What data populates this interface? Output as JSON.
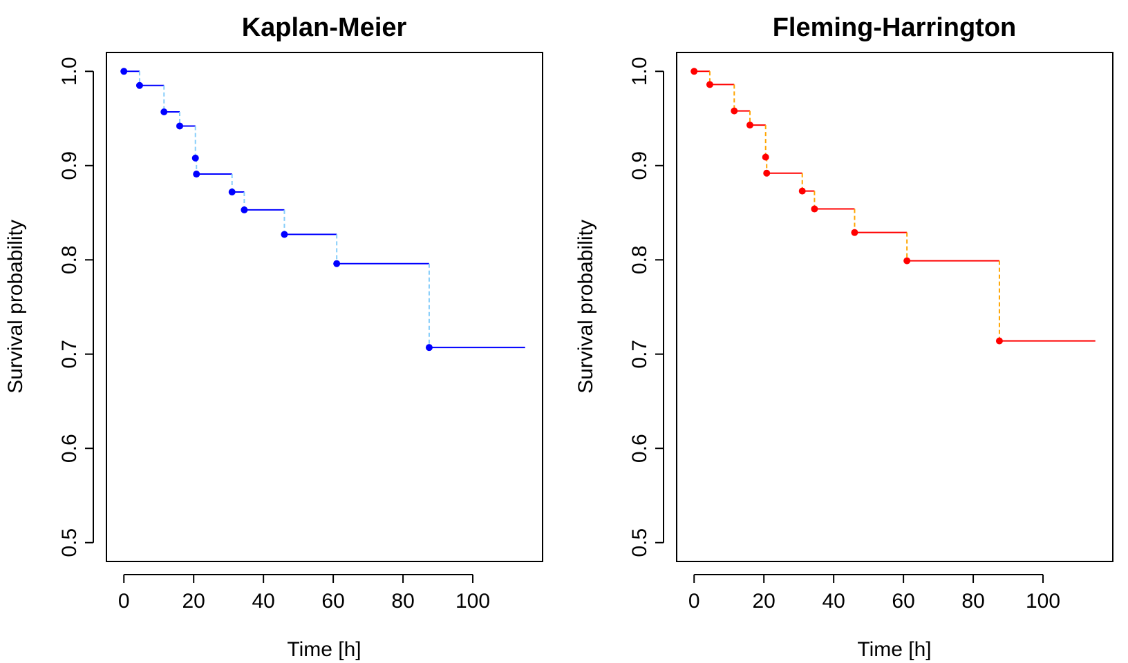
{
  "chart_data": [
    {
      "type": "line",
      "style": "step",
      "title": "Kaplan-Meier",
      "xlabel": "Time [h]",
      "ylabel": "Survival probability",
      "xlim": [
        -5,
        120
      ],
      "ylim": [
        0.48,
        1.02
      ],
      "xticks": [
        0,
        20,
        40,
        60,
        80,
        100
      ],
      "xtick_labels": [
        "0",
        "20",
        "40",
        "60",
        "80",
        "100"
      ],
      "yticks": [
        0.5,
        0.6,
        0.7,
        0.8,
        0.9,
        1.0
      ],
      "ytick_labels": [
        "0.5",
        "0.6",
        "0.7",
        "0.8",
        "0.9",
        "1.0"
      ],
      "grid": false,
      "colors": {
        "step": "#0000ff",
        "drop": "#87cefa",
        "point": "#0000ff"
      },
      "times": [
        0,
        4.5,
        11.5,
        16,
        20.5,
        20.8,
        31,
        34.5,
        46,
        61,
        87.5
      ],
      "survival": [
        1.0,
        0.985,
        0.957,
        0.942,
        0.908,
        0.891,
        0.872,
        0.853,
        0.827,
        0.796,
        0.707
      ],
      "x_end": 115
    },
    {
      "type": "line",
      "style": "step",
      "title": "Fleming-Harrington",
      "xlabel": "Time [h]",
      "ylabel": "Survival probability",
      "xlim": [
        -5,
        120
      ],
      "ylim": [
        0.48,
        1.02
      ],
      "xticks": [
        0,
        20,
        40,
        60,
        80,
        100
      ],
      "xtick_labels": [
        "0",
        "20",
        "40",
        "60",
        "80",
        "100"
      ],
      "yticks": [
        0.5,
        0.6,
        0.7,
        0.8,
        0.9,
        1.0
      ],
      "ytick_labels": [
        "0.5",
        "0.6",
        "0.7",
        "0.8",
        "0.9",
        "1.0"
      ],
      "grid": false,
      "colors": {
        "step": "#ff0000",
        "drop": "#ffa500",
        "point": "#ff0000"
      },
      "times": [
        0,
        4.5,
        11.5,
        16,
        20.5,
        20.8,
        31,
        34.5,
        46,
        61,
        87.5
      ],
      "survival": [
        1.0,
        0.986,
        0.958,
        0.943,
        0.909,
        0.892,
        0.873,
        0.854,
        0.829,
        0.799,
        0.714
      ],
      "x_end": 115
    }
  ]
}
